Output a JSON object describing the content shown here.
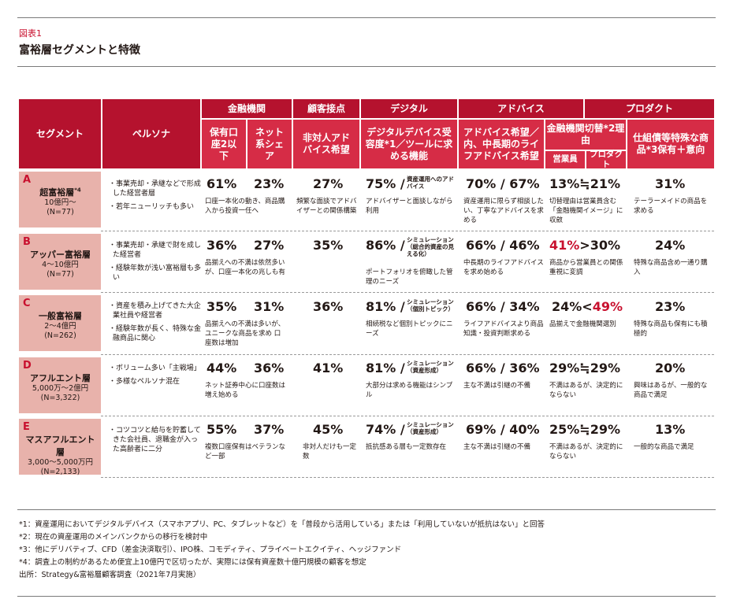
{
  "figure": {
    "label": "図表1",
    "title": "富裕層セグメントと特徴"
  },
  "headers": {
    "segment": "セグメント",
    "persona": "ペルソナ",
    "groups": [
      "金融機関",
      "顧客接点",
      "デジタル",
      "アドバイス",
      "プロダクト"
    ],
    "cols": {
      "c1": "保有口座2以下",
      "c2": "ネット系シェア",
      "c3": "非対人アドバイス希望",
      "c4": "デジタルデバイス受容度*1／ツールに求める機能",
      "c5": "アドバイス希望／内、中長期のライフアドバイス希望",
      "c6": "金融機関切替*2理由",
      "c6a": "営業員",
      "c6b": "プロダクト",
      "c7": "仕組債等特殊な商品*3保有＋意向"
    }
  },
  "rows": [
    {
      "letter": "A",
      "name": "超富裕層",
      "name_sup": "*4",
      "range1": "10億円〜",
      "range2": "(N=77)",
      "persona": [
        "・事業売却・承継などで形成した経営者層",
        "・若年ニューリッチも多い"
      ],
      "c1": "61%",
      "c1n": "口座一本化の動き、商品購入から投資一任へ",
      "c2": "23%",
      "c3": "27%",
      "c3n": "頻繁な面談でアドバイザーとの関係構築",
      "c4": "75% /",
      "c4s": "資産運用へのアドバイス",
      "c4n": "アドバイザーと面談しながら利用",
      "c5": "70% / 67%",
      "c5n": "資産運用に限らず相談したい、丁寧なアドバイスを求める",
      "c6": "13%≒21%",
      "c6n": "切替理由は営業員含む「金融機関イメージ」に収斂",
      "c7": "31%",
      "c7n": "テーラーメイドの商品を求める"
    },
    {
      "letter": "B",
      "name": "アッパー富裕層",
      "range1": "4〜10億円",
      "range2": "(N=77)",
      "persona": [
        "・事業売却・承継で財を成した経営者",
        "・経験年数が浅い富裕層も多い"
      ],
      "c1": "36%",
      "c1n": "品揃えへの不満は依然多いが、口座一本化の兆しも有",
      "c2": "27%",
      "c3": "35%",
      "c4": "86% /",
      "c4s": "シミュレーション（総合的資産の見える化）",
      "c4n": "ポートフォリオを俯瞰した管理のニーズ",
      "c5": "66% / 46%",
      "c5n": "中長期のライフアドバイスを求め始める",
      "c6a": "41%",
      "c6b": ">30%",
      "c6n": "商品から営業員との関係重視に変調",
      "c7": "24%",
      "c7n": "特殊な商品含め一通り購入"
    },
    {
      "letter": "C",
      "name": "一般富裕層",
      "range1": "2〜4億円",
      "range2": "(N=262)",
      "persona": [
        "・資産を積み上げてきた大企業社員や経営者",
        "・経験年数が長く、特殊な金融商品に関心"
      ],
      "c1": "35%",
      "c1n": "品揃えへの不満は多いが、ユニークな商品を求め 口座数は増加",
      "c2": "31%",
      "c3": "36%",
      "c4": "81% /",
      "c4s": "シミュレーション（個別トピック）",
      "c4n": "相続税など個別トピックにニーズ",
      "c5": "66% / 34%",
      "c5n": "ライフアドバイスより商品知識・投資判断求める",
      "c6a": "24%<",
      "c6b": "49%",
      "c6n": "品揃えで金融機関選別",
      "c7": "23%",
      "c7n": "特殊な商品も保有にも積極的"
    },
    {
      "letter": "D",
      "name": "アフルエント層",
      "range1": "5,000万〜2億円",
      "range2": "(N=3,322)",
      "persona": [
        "・ボリューム多い「主戦場」",
        "・多様なペルソナ混在"
      ],
      "c1": "44%",
      "c1n": "ネット証券中心に口座数は増え始める",
      "c2": "36%",
      "c3": "41%",
      "c4": "81% /",
      "c4s": "シミュレーション（資産形成）",
      "c4n": "大部分は求める機能はシンプル",
      "c5": "66% / 36%",
      "c5n": "主な不満は引継の不備",
      "c6": "29%≒29%",
      "c6n": "不満はあるが、決定的にならない",
      "c7": "20%",
      "c7n": "興味はあるが、一般的な商品で満足"
    },
    {
      "letter": "E",
      "name": "マスアフルエント層",
      "range1": "3,000〜5,000万円",
      "range2": "(N=2,133)",
      "persona": [
        "・コツコツと給与を貯蓄してきた会社員、退職金が入った高齢者に二分"
      ],
      "c1": "55%",
      "c1n": "複数口座保有はベテランなど一部",
      "c2": "37%",
      "c3": "45%",
      "c3n": "非対人だけも一定数",
      "c4": "74% /",
      "c4s": "シミュレーション（資産形成）",
      "c4n": "抵抗感ある層も一定数存在",
      "c5": "69% / 40%",
      "c5n": "主な不満は引継の不備",
      "c6": "25%≒29%",
      "c6n": "不満はあるが、決定的にならない",
      "c7": "13%",
      "c7n": "一般的な商品で満足"
    }
  ],
  "footnotes": [
    "*1：資産運用においてデジタルデバイス（スマホアプリ、PC、タブレットなど）を「普段から活用している」または「利用していないが抵抗はない」と回答",
    "*2：現在の資産運用のメインバンクからの移行を検討中",
    "*3：他にデリバティブ、CFD（差金決済取引）、IPO株、コモディティ、プライベートエクイティ、ヘッジファンド",
    "*4：調査上の制約があるため便宜上10億円で区切ったが、実際には保有資産数十億円規模の顧客を想定",
    "出所：Strategy&富裕層顧客調査（2021年7月実施）"
  ],
  "colors": {
    "header": "#b5122e",
    "header2": "#d62c46",
    "segment": "#e8b2ab",
    "accent": "#c8102e"
  }
}
